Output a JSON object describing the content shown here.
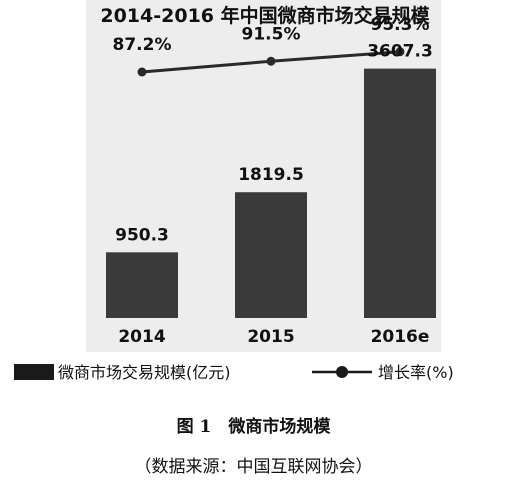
{
  "chart_data": {
    "type": "bar",
    "title": "2014-2016 年中国微商市场交易规模",
    "categories": [
      "2014",
      "2015",
      "2016e"
    ],
    "series": [
      {
        "name": "微商市场交易规模(亿元)",
        "type": "bar",
        "values": [
          950.3,
          1819.5,
          3607.3
        ],
        "value_labels": [
          "950.3",
          "1819.5",
          "3607.3"
        ],
        "color": "#3a3a3a"
      },
      {
        "name": "增长率(%)",
        "type": "line",
        "values": [
          87.2,
          91.5,
          95.3
        ],
        "value_labels": [
          "87.2%",
          "91.5%",
          "95.3%"
        ],
        "color": "#2a2a2a"
      }
    ],
    "ylim": [
      0,
      4600
    ],
    "line_ylim": [
      60,
      100
    ],
    "grid": false,
    "legend_position": "bottom",
    "background": "#ededed"
  },
  "caption": {
    "title": "图 1　微商市场规模",
    "source": "（数据来源：中国互联网协会）"
  }
}
